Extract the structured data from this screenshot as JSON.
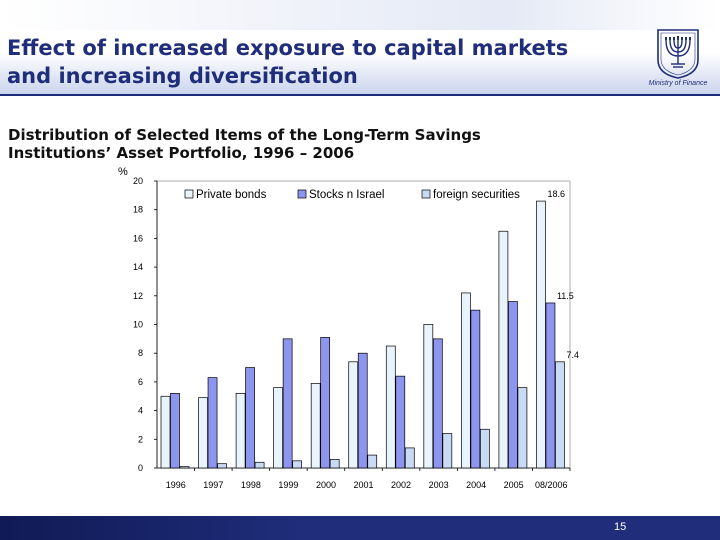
{
  "slide": {
    "title_line1": "Effect of increased exposure to capital markets",
    "title_line2": "and increasing diversification",
    "logo_caption": "Ministry of Finance",
    "subtitle_line1": "Distribution of Selected Items of the Long-Term Savings",
    "subtitle_line2": "Institutions’ Asset Portfolio, 1996 – 2006",
    "page_number": "15"
  },
  "colors": {
    "title": "#1f2d7a",
    "footer": "#1f2d7a",
    "private_bonds": "#e8f3fb",
    "stocks_israel": "#8e95ee",
    "foreign_securities": "#c9daf4"
  },
  "chart_data": {
    "type": "bar",
    "ylabel": "%",
    "ylim": [
      0,
      20
    ],
    "yticks": [
      0,
      2,
      4,
      6,
      8,
      10,
      12,
      14,
      16,
      18,
      20
    ],
    "categories": [
      "1996",
      "1997",
      "1998",
      "1999",
      "2000",
      "2001",
      "2002",
      "2003",
      "2004",
      "2005",
      "08/2006"
    ],
    "legend_position": "top",
    "grid": false,
    "series": [
      {
        "name": "Private bonds",
        "color": "#e8f3fb",
        "values": [
          5.0,
          4.9,
          5.2,
          5.6,
          5.9,
          7.4,
          8.5,
          10.0,
          12.2,
          16.5,
          18.6
        ]
      },
      {
        "name": "Stocks  n Israel",
        "color": "#8e95ee",
        "values": [
          5.2,
          6.3,
          7.0,
          9.0,
          9.1,
          8.0,
          6.4,
          9.0,
          11.0,
          11.6,
          11.5
        ]
      },
      {
        "name": "foreign securities",
        "color": "#c9daf4",
        "values": [
          0.1,
          0.3,
          0.4,
          0.5,
          0.6,
          0.9,
          1.4,
          2.4,
          2.7,
          5.6,
          7.4
        ]
      }
    ],
    "data_labels": [
      {
        "series": 0,
        "category": 10,
        "text": "18.6"
      },
      {
        "series": 1,
        "category": 10,
        "text": "11.5"
      },
      {
        "series": 2,
        "category": 10,
        "text": "7.4"
      }
    ]
  }
}
